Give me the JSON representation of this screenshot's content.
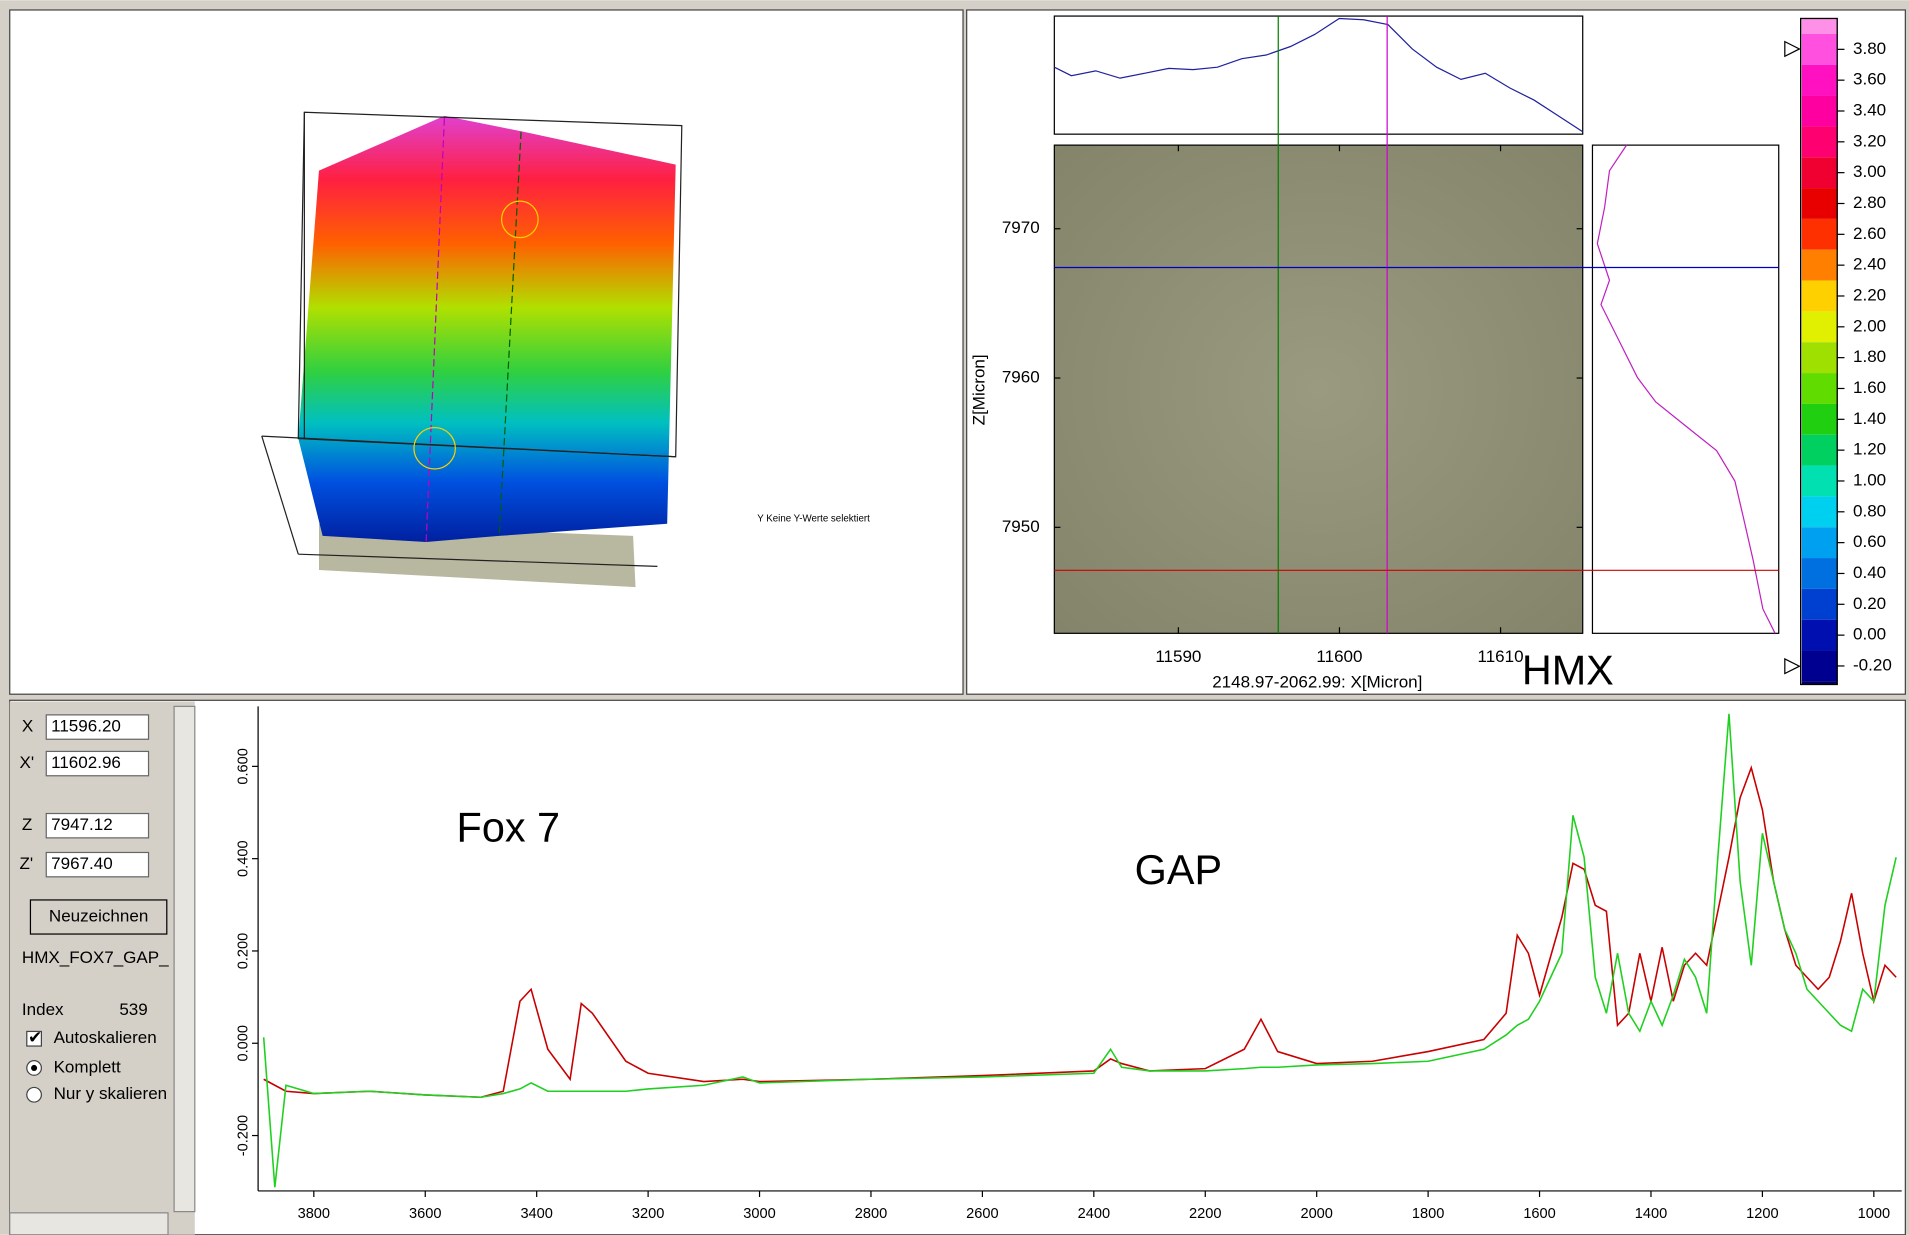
{
  "surface_view": {
    "status_text": "Y Keine Y-Werte selektiert"
  },
  "image_view": {
    "xlabel": "2148.97-2062.99: X[Micron]",
    "ylabel": "Z[Micron]",
    "xlim": [
      11582.3,
      11615.1
    ],
    "ylim": [
      7942.9,
      7975.6
    ],
    "xticks": [
      11590,
      11600,
      11610
    ],
    "yticks": [
      7950,
      7960,
      7970
    ]
  },
  "colorbar": {
    "ylim": [
      -0.32,
      4.0
    ],
    "ticks": [
      {
        "value": 3.8,
        "label": "3.80"
      },
      {
        "value": 3.6,
        "label": "3.60"
      },
      {
        "value": 3.4,
        "label": "3.40"
      },
      {
        "value": 3.2,
        "label": "3.20"
      },
      {
        "value": 3.0,
        "label": "3.00"
      },
      {
        "value": 2.8,
        "label": "2.80"
      },
      {
        "value": 2.6,
        "label": "2.60"
      },
      {
        "value": 2.4,
        "label": "2.40"
      },
      {
        "value": 2.2,
        "label": "2.20"
      },
      {
        "value": 2.0,
        "label": "2.00"
      },
      {
        "value": 1.8,
        "label": "1.80"
      },
      {
        "value": 1.6,
        "label": "1.60"
      },
      {
        "value": 1.4,
        "label": "1.40"
      },
      {
        "value": 1.2,
        "label": "1.20"
      },
      {
        "value": 1.0,
        "label": "1.00"
      },
      {
        "value": 0.8,
        "label": "0.80"
      },
      {
        "value": 0.6,
        "label": "0.60"
      },
      {
        "value": 0.4,
        "label": "0.40"
      },
      {
        "value": 0.2,
        "label": "0.20"
      },
      {
        "value": 0,
        "label": "0.00"
      },
      {
        "value": -0.2,
        "label": "-0.20"
      }
    ]
  },
  "controls": {
    "x_label": "X",
    "x_value": "11596.20",
    "x2_label": "X'",
    "x2_value": "11602.96",
    "z_label": "Z",
    "z_value": "7947.12",
    "z2_label": "Z'",
    "z2_value": "7967.40",
    "redraw_button": "Neuzeichnen",
    "file_name": "HMX_FOX7_GAP_",
    "index_label": "Index",
    "index_value": "539",
    "autoscale": {
      "label": "Autoskalieren",
      "checked": true
    },
    "scale_mode": {
      "options": [
        "Komplett",
        "Nur y skalieren"
      ],
      "selected": 0
    }
  },
  "chart_data": {
    "type": "line",
    "annotations": [
      {
        "text": "Fox 7",
        "color": "#e00000"
      },
      {
        "text": "GAP",
        "color": "#e00000"
      },
      {
        "text": "HMX",
        "color": "#00c000"
      }
    ],
    "x": [
      3890,
      3870,
      3850,
      3800,
      3700,
      3600,
      3500,
      3460,
      3430,
      3410,
      3380,
      3340,
      3320,
      3300,
      3270,
      3240,
      3200,
      3100,
      3030,
      3000,
      2800,
      2600,
      2400,
      2370,
      2350,
      2300,
      2200,
      2130,
      2100,
      2070,
      2000,
      1900,
      1800,
      1700,
      1660,
      1640,
      1620,
      1600,
      1560,
      1540,
      1520,
      1500,
      1480,
      1460,
      1440,
      1420,
      1400,
      1380,
      1360,
      1340,
      1320,
      1300,
      1280,
      1260,
      1240,
      1220,
      1200,
      1180,
      1160,
      1140,
      1120,
      1100,
      1080,
      1060,
      1040,
      1020,
      1000,
      980,
      960
    ],
    "series": [
      {
        "color": "#c80000",
        "values": [
          -0.078,
          -0.091,
          -0.104,
          -0.109,
          -0.104,
          -0.112,
          -0.117,
          -0.104,
          0.091,
          0.117,
          -0.013,
          -0.078,
          0.086,
          0.065,
          0.013,
          -0.039,
          -0.065,
          -0.083,
          -0.078,
          -0.083,
          -0.078,
          -0.07,
          -0.06,
          -0.034,
          -0.044,
          -0.06,
          -0.055,
          -0.013,
          0.052,
          -0.018,
          -0.044,
          -0.039,
          -0.018,
          0.008,
          0.065,
          0.234,
          0.195,
          0.104,
          0.273,
          0.39,
          0.377,
          0.299,
          0.286,
          0.039,
          0.065,
          0.195,
          0.091,
          0.208,
          0.091,
          0.169,
          0.195,
          0.169,
          0.286,
          0.403,
          0.532,
          0.597,
          0.506,
          0.351,
          0.247,
          0.169,
          0.143,
          0.117,
          0.143,
          0.221,
          0.325,
          0.195,
          0.091,
          0.169,
          0.143
        ]
      },
      {
        "color": "#20d020",
        "values": [
          0.013,
          -0.312,
          -0.091,
          -0.109,
          -0.104,
          -0.112,
          -0.117,
          -0.109,
          -0.099,
          -0.086,
          -0.104,
          -0.104,
          -0.104,
          -0.104,
          -0.104,
          -0.104,
          -0.099,
          -0.091,
          -0.073,
          -0.086,
          -0.078,
          -0.073,
          -0.065,
          -0.013,
          -0.052,
          -0.06,
          -0.06,
          -0.055,
          -0.052,
          -0.052,
          -0.047,
          -0.044,
          -0.039,
          -0.013,
          0.018,
          0.039,
          0.052,
          0.091,
          0.195,
          0.494,
          0.403,
          0.143,
          0.065,
          0.195,
          0.065,
          0.026,
          0.091,
          0.039,
          0.104,
          0.182,
          0.143,
          0.065,
          0.403,
          0.714,
          0.351,
          0.169,
          0.455,
          0.351,
          0.247,
          0.195,
          0.117,
          0.091,
          0.065,
          0.039,
          0.026,
          0.117,
          0.091,
          0.299,
          0.403
        ]
      }
    ],
    "xlim": [
      3900,
      950
    ],
    "xticks": [
      3800,
      3600,
      3400,
      3200,
      3000,
      2800,
      2600,
      2400,
      2200,
      2000,
      1800,
      1600,
      1400,
      1200,
      1000
    ],
    "ylim": [
      -0.32,
      0.73
    ],
    "yticks": [
      {
        "value": -0.2,
        "label": "-0.200"
      },
      {
        "value": 0,
        "label": "0.000"
      },
      {
        "value": 0.2,
        "label": "0.200"
      },
      {
        "value": 0.4,
        "label": "0.400"
      },
      {
        "value": 0.6,
        "label": "0.600"
      }
    ]
  }
}
